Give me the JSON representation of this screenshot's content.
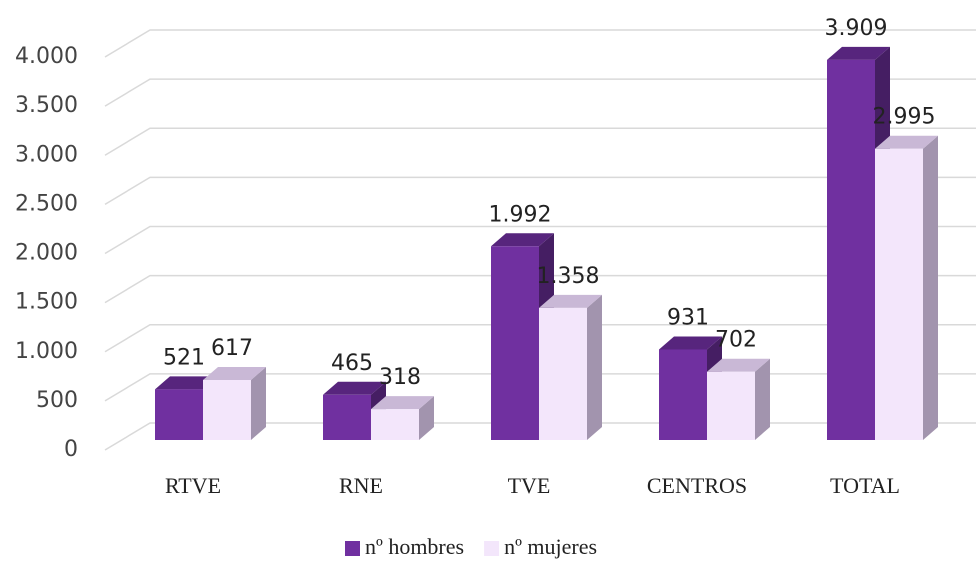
{
  "chart_data": {
    "type": "bar3d",
    "categories": [
      "RTVE",
      "RNE",
      "TVE",
      "CENTROS",
      "TOTAL"
    ],
    "series": [
      {
        "name": "nº hombres",
        "color": "#7030a0",
        "values": [
          521,
          465,
          1992,
          931,
          3909
        ],
        "value_labels": [
          "521",
          "465",
          "1.992",
          "931",
          "3.909"
        ]
      },
      {
        "name": "nº mujeres",
        "color": "#f3e6fb",
        "values": [
          617,
          318,
          1358,
          702,
          2995
        ],
        "value_labels": [
          "617",
          "318",
          "1.358",
          "702",
          "2.995"
        ]
      }
    ],
    "ylim": [
      0,
      4000
    ],
    "yticks": [
      0,
      500,
      {
        "value": 1000,
        "label": "1.000"
      },
      {
        "value": 1500,
        "label": "1.500"
      },
      {
        "value": 2000,
        "label": "2.000"
      },
      {
        "value": 2500,
        "label": "2.500"
      },
      {
        "value": 3000,
        "label": "3.000"
      },
      {
        "value": 3500,
        "label": "3.500"
      },
      {
        "value": 4000,
        "label": "4.000"
      }
    ],
    "grid": true,
    "legend": "bottom"
  }
}
